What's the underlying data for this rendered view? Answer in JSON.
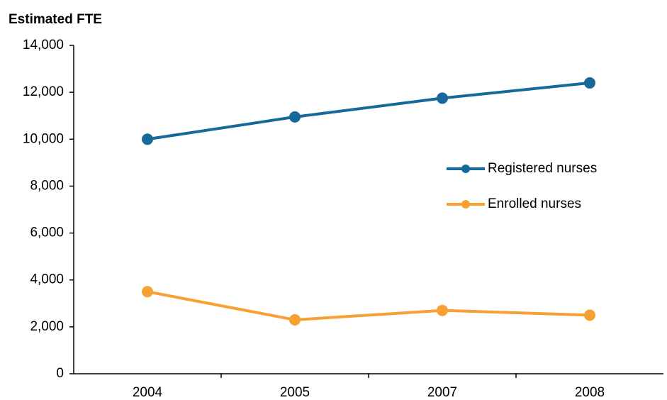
{
  "chart_data": {
    "type": "line",
    "y_label": "Estimated FTE",
    "categories": [
      "2004",
      "2005",
      "2007",
      "2008"
    ],
    "series": [
      {
        "name": "Registered nurses",
        "color": "#17699a",
        "values": [
          10000,
          10950,
          11750,
          12400
        ]
      },
      {
        "name": "Enrolled nurses",
        "color": "#f7a033",
        "values": [
          3500,
          2300,
          2700,
          2500
        ]
      }
    ],
    "ylim": [
      0,
      14000
    ],
    "yticks": [
      0,
      {
        "value": 2000,
        "label": "2,000"
      },
      {
        "value": 4000,
        "label": "4,000"
      },
      {
        "value": 6000,
        "label": "6,000"
      },
      {
        "value": 8000,
        "label": "8,000"
      },
      {
        "value": 10000,
        "label": "10,000"
      },
      {
        "value": 12000,
        "label": "12,000"
      },
      {
        "value": 14000,
        "label": "14,000"
      }
    ],
    "grid": false,
    "legend": "right"
  }
}
